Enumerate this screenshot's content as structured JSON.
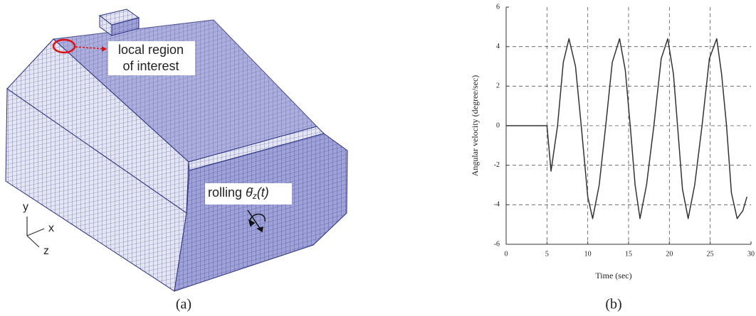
{
  "panel_a": {
    "callout_line1": "local region",
    "callout_line2": "of interest",
    "rolling_label": "rolling",
    "rolling_symbol": "θ̇",
    "rolling_subscript": "z",
    "rolling_arg": "(t)",
    "axis_y": "y",
    "axis_x": "x",
    "axis_z": "z",
    "caption": "(a)"
  },
  "caption_b": "(b)",
  "chart_data": {
    "type": "line",
    "xlabel": "Time (sec)",
    "ylabel": "Angular velocity (degree/sec)",
    "x": [
      0,
      5,
      5.5,
      6.3,
      7,
      7.7,
      8.5,
      9.2,
      10,
      10.6,
      11.4,
      12.2,
      13,
      13.9,
      14.6,
      15.2,
      15.8,
      16.4,
      17.2,
      18.1,
      19,
      19.8,
      20.5,
      21,
      21.6,
      22.3,
      23.1,
      24,
      24.9,
      25.8,
      26.4,
      27,
      27.6,
      28.3,
      29,
      29.5
    ],
    "values": [
      0,
      0,
      -2.3,
      0,
      3.2,
      4.4,
      3.0,
      0,
      -3.6,
      -4.7,
      -3.0,
      0,
      3.2,
      4.4,
      2.8,
      0,
      -3.0,
      -4.7,
      -3.0,
      0,
      3.4,
      4.4,
      2.6,
      0,
      -3.2,
      -4.7,
      -3.0,
      0,
      3.4,
      4.4,
      2.6,
      0,
      -3.4,
      -4.7,
      -4.3,
      -3.6
    ],
    "color": "#333333",
    "xlim": [
      0,
      30
    ],
    "xticks": [
      0,
      5,
      10,
      15,
      20,
      25,
      30
    ],
    "ylim": [
      -6,
      6
    ],
    "yticks": [
      -6,
      -4,
      -2,
      0,
      2,
      4,
      6
    ],
    "grid": true
  }
}
